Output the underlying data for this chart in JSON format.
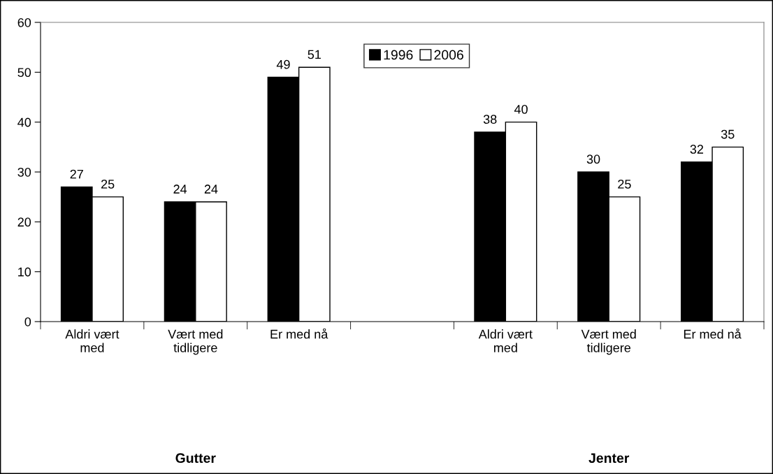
{
  "chart_data": {
    "type": "bar",
    "categories": [
      "Aldri vært\nmed",
      "Vært med\ntidligere",
      "Er med nå",
      null,
      "Aldri vært\nmed",
      "Vært med\ntidligere",
      "Er med nå"
    ],
    "series": [
      {
        "name": "1996",
        "color": "#000000",
        "values": [
          27,
          24,
          49,
          null,
          38,
          30,
          32
        ]
      },
      {
        "name": "2006",
        "color": "#ffffff",
        "values": [
          25,
          24,
          51,
          null,
          40,
          25,
          35
        ]
      }
    ],
    "ylim": [
      0,
      60
    ],
    "yticks": [
      0,
      10,
      20,
      30,
      40,
      50,
      60
    ],
    "data_labels": true,
    "legend": "top",
    "grid": false,
    "annotations": [
      "Gutter",
      "Jenter"
    ]
  }
}
